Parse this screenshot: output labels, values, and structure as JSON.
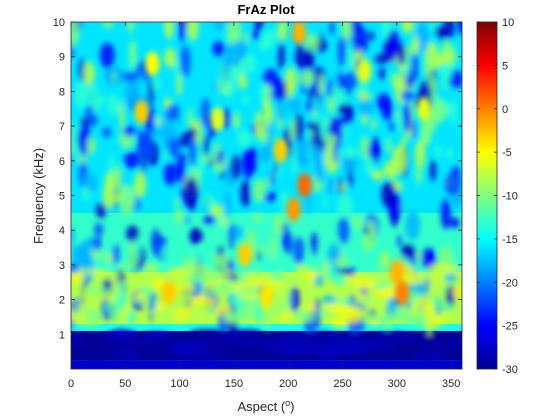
{
  "chart_data": {
    "type": "heatmap",
    "title": "FrAz Plot",
    "xlabel_main": "Aspect (",
    "xlabel_sup": "o",
    "xlabel_end": ")",
    "ylabel": "Frequency (kHz)",
    "xlim": [
      0,
      360
    ],
    "ylim": [
      0,
      10
    ],
    "x_ticks": [
      0,
      50,
      100,
      150,
      200,
      250,
      300,
      350
    ],
    "x_tick_labels": [
      "0",
      "50",
      "100",
      "150",
      "200",
      "250",
      "300",
      "350"
    ],
    "y_ticks": [
      1,
      2,
      3,
      4,
      5,
      6,
      7,
      8,
      9,
      10
    ],
    "y_tick_labels": [
      "1",
      "2",
      "3",
      "4",
      "5",
      "6",
      "7",
      "8",
      "9",
      "10"
    ],
    "colorbar": {
      "colormap": "jet",
      "clim": [
        -30,
        10
      ],
      "ticks": [
        -30,
        -25,
        -20,
        -15,
        -10,
        -5,
        0,
        5,
        10
      ],
      "tick_labels": [
        "-30",
        "-25",
        "-20",
        "-15",
        "-10",
        "-5",
        "0",
        "5",
        "10"
      ]
    },
    "bands": [
      {
        "f_range": [
          0,
          0.25
        ],
        "level_db": -27
      },
      {
        "f_range": [
          0.25,
          1.1
        ],
        "level_db": -29
      },
      {
        "f_range": [
          1.1,
          1.3
        ],
        "level_db": -14
      },
      {
        "f_range": [
          1.3,
          2.8
        ],
        "level_db": -8
      },
      {
        "f_range": [
          2.8,
          4.5
        ],
        "level_db": -13
      },
      {
        "f_range": [
          4.5,
          10
        ],
        "level_db": -16
      }
    ],
    "hotspots": [
      {
        "aspect": 305,
        "freq": 2.2,
        "level_db": 0
      },
      {
        "aspect": 90,
        "freq": 2.2,
        "level_db": -3
      },
      {
        "aspect": 300,
        "freq": 2.8,
        "level_db": -2
      },
      {
        "aspect": 215,
        "freq": 5.3,
        "level_db": 1
      },
      {
        "aspect": 205,
        "freq": 4.6,
        "level_db": -1
      },
      {
        "aspect": 193,
        "freq": 6.3,
        "level_db": -3
      },
      {
        "aspect": 210,
        "freq": 9.7,
        "level_db": -2
      },
      {
        "aspect": 65,
        "freq": 7.4,
        "level_db": -3
      },
      {
        "aspect": 75,
        "freq": 8.8,
        "level_db": -5
      },
      {
        "aspect": 135,
        "freq": 7.2,
        "level_db": -6
      },
      {
        "aspect": 160,
        "freq": 3.3,
        "level_db": -3
      },
      {
        "aspect": 180,
        "freq": 2.1,
        "level_db": -4
      },
      {
        "aspect": 325,
        "freq": 7.5,
        "level_db": -6
      },
      {
        "aspect": 270,
        "freq": 8.6,
        "level_db": -6
      }
    ]
  }
}
